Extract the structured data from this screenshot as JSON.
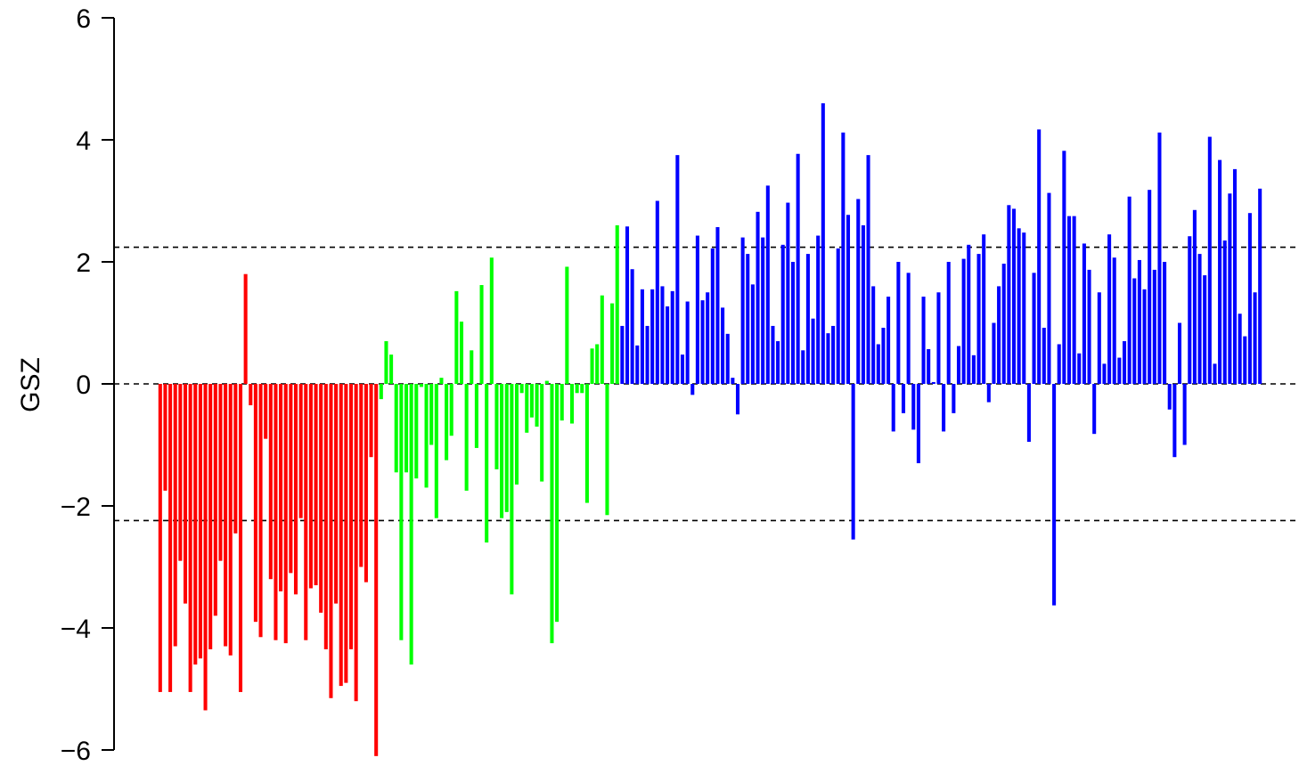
{
  "chart_data": {
    "type": "bar",
    "ylabel": "GSZ",
    "xlabel": "",
    "title": "",
    "ylim": [
      -6,
      6
    ],
    "yticks": [
      -6,
      -4,
      -2,
      0,
      2,
      4,
      6
    ],
    "ytick_labels": [
      "−6",
      "−4",
      "−2",
      "0",
      "2",
      "4",
      "6"
    ],
    "reference_lines": [
      2.24,
      0,
      -2.24
    ],
    "grid": false,
    "colors": {
      "red": "#ff0000",
      "green": "#00ff00",
      "blue": "#0000ff",
      "ref_line": "#000000"
    },
    "series": [
      {
        "color": "red",
        "values": [
          -5.05,
          -1.75,
          -5.05,
          -4.3,
          -2.9,
          -3.6,
          -5.05,
          -4.6,
          -4.5,
          -5.35,
          -4.35,
          -3.8,
          -2.9,
          -4.3,
          -4.45,
          -2.45,
          -5.05,
          1.8,
          -0.35,
          -3.9,
          -4.15,
          -0.9,
          -3.2,
          -4.2,
          -3.4,
          -4.25,
          -3.1,
          -3.45,
          -2.2,
          -4.2,
          -3.35,
          -3.3,
          -3.75,
          -4.35,
          -5.15,
          -3.6,
          -4.95,
          -4.9,
          -4.35,
          -5.2,
          -3.0,
          -3.25,
          -1.2,
          -6.1
        ]
      },
      {
        "color": "green",
        "values": [
          -0.25,
          0.7,
          0.48,
          -1.45,
          -4.2,
          -1.45,
          -4.6,
          -1.55,
          -0.05,
          -1.7,
          -1.0,
          -2.2,
          0.1,
          -1.25,
          -0.85,
          1.52,
          1.02,
          -1.75,
          0.55,
          -1.05,
          1.62,
          -2.6,
          2.07,
          -1.4,
          -2.2,
          -2.1,
          -3.45,
          -1.65,
          -0.15,
          -0.8,
          -0.55,
          -0.7,
          -1.6,
          0.05,
          -4.25,
          -3.9,
          -0.6,
          1.92,
          -0.65,
          -0.15,
          -0.15,
          -1.95,
          0.58,
          0.65,
          1.45,
          -2.15,
          1.32,
          2.6
        ]
      },
      {
        "color": "blue",
        "values": [
          0.95,
          2.58,
          1.88,
          0.63,
          1.55,
          0.95,
          1.55,
          3.0,
          1.6,
          1.27,
          1.52,
          3.75,
          0.48,
          1.35,
          -0.18,
          2.43,
          1.37,
          1.5,
          2.22,
          2.57,
          1.25,
          0.82,
          0.1,
          -0.5,
          2.4,
          2.13,
          1.63,
          2.82,
          2.4,
          3.25,
          0.95,
          0.7,
          2.28,
          2.97,
          2.0,
          3.77,
          0.55,
          2.13,
          1.07,
          2.43,
          4.6,
          0.83,
          0.95,
          2.22,
          4.12,
          2.77,
          -2.55,
          3.03,
          2.6,
          3.75,
          1.6,
          0.65,
          0.92,
          1.43,
          -0.78,
          2.0,
          -0.48,
          1.82,
          -0.75,
          -1.3,
          1.43,
          0.57,
          0.03,
          1.5,
          -0.78,
          2.0,
          -0.48,
          0.62,
          2.05,
          2.28,
          0.47,
          2.13,
          2.45,
          -0.3,
          1.0,
          1.6,
          1.97,
          2.93,
          2.87,
          2.55,
          2.48,
          -0.95,
          1.82,
          4.17,
          0.92,
          3.13,
          -3.63,
          0.65,
          3.82,
          2.75,
          2.75,
          0.5,
          2.3,
          1.87,
          -0.82,
          1.5,
          0.33,
          2.45,
          2.07,
          0.43,
          0.7,
          3.07,
          1.73,
          2.03,
          1.55,
          3.18,
          1.87,
          4.12,
          2.0,
          -0.42,
          -1.2,
          1.0,
          -1.0,
          2.42,
          2.85,
          2.13,
          1.78,
          4.05,
          0.33,
          3.67,
          2.35,
          3.12,
          3.52,
          1.15,
          0.78,
          2.8,
          1.5,
          3.2
        ]
      }
    ]
  }
}
